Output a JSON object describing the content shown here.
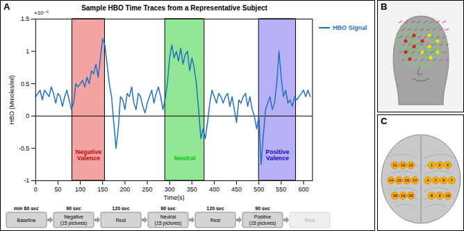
{
  "panel_labels": [
    "A",
    "B",
    "C"
  ],
  "chart_data": {
    "type": "line",
    "title": "Sample HBO Time Traces from a Representative Subject",
    "y_multiplier_label": "×10⁻⁶",
    "x_label": "Time(s)",
    "y_label": "HBO (Mmoles/ml)",
    "x": [
      0,
      5,
      10,
      15,
      20,
      25,
      30,
      35,
      40,
      45,
      50,
      55,
      60,
      65,
      70,
      75,
      80,
      85,
      90,
      95,
      100,
      105,
      110,
      115,
      120,
      125,
      130,
      135,
      140,
      145,
      150,
      155,
      160,
      165,
      170,
      175,
      180,
      185,
      190,
      195,
      200,
      205,
      210,
      215,
      220,
      225,
      230,
      235,
      240,
      245,
      250,
      255,
      260,
      265,
      270,
      275,
      280,
      285,
      290,
      295,
      300,
      305,
      310,
      315,
      320,
      325,
      330,
      335,
      340,
      345,
      350,
      355,
      360,
      365,
      370,
      375,
      380,
      385,
      390,
      395,
      400,
      405,
      410,
      415,
      420,
      425,
      430,
      435,
      440,
      445,
      450,
      455,
      460,
      465,
      470,
      475,
      480,
      485,
      490,
      495,
      500,
      505,
      510,
      515,
      520,
      525,
      530,
      535,
      540,
      545,
      550,
      555,
      560,
      565,
      570,
      575,
      580,
      585,
      590,
      595,
      600,
      605,
      610,
      615
    ],
    "series": [
      {
        "name": "HBO Signal",
        "color": "#1f6fc4",
        "values": [
          0.3,
          0.35,
          0.4,
          0.25,
          0.4,
          0.35,
          0.3,
          0.45,
          0.35,
          0.2,
          0.35,
          0.3,
          0.15,
          0.3,
          0.4,
          0.25,
          0.1,
          0.2,
          0.5,
          0.45,
          0.5,
          0.55,
          0.45,
          0.6,
          0.5,
          0.7,
          0.65,
          0.8,
          0.6,
          0.9,
          1.2,
          1.1,
          0.8,
          0.5,
          0.3,
          -0.1,
          -0.5,
          -0.2,
          0.3,
          0.25,
          0.1,
          0.35,
          0.3,
          0.45,
          0.2,
          0.1,
          0.35,
          0.3,
          0.15,
          0.05,
          0.2,
          0.3,
          0.4,
          0.2,
          0.35,
          0.45,
          0.3,
          0.1,
          0.25,
          0.5,
          0.9,
          1.1,
          0.9,
          1.0,
          0.85,
          1.05,
          0.8,
          0.95,
          1.0,
          0.7,
          0.9,
          0.75,
          0.5,
          0.1,
          -0.35,
          -0.2,
          -0.35,
          -0.1,
          0.2,
          0.4,
          0.3,
          0.2,
          0.35,
          0.3,
          0.2,
          0.3,
          0.35,
          0.15,
          0.3,
          0.1,
          -0.1,
          0.25,
          0.2,
          0.3,
          0.35,
          0.15,
          0.3,
          0.1,
          0,
          -0.2,
          0,
          -0.75,
          -0.3,
          0.1,
          0.2,
          0.3,
          0.1,
          0.2,
          0.5,
          1.0,
          0.6,
          0.3,
          0.4,
          0.2,
          0.25,
          0.15,
          0.3,
          0.25,
          0.3,
          0.35,
          0.4,
          0.3,
          0.4,
          0.3
        ]
      }
    ],
    "regions": [
      {
        "label": "Negative Valence",
        "start": 82,
        "end": 155,
        "color": "#f4a3a3"
      },
      {
        "label": "Neutral",
        "start": 290,
        "end": 378,
        "color": "#93e693"
      },
      {
        "label": "Positive Valence",
        "start": 500,
        "end": 583,
        "color": "#b8b0f5"
      }
    ],
    "reference_y": 0,
    "xlim": [
      0,
      620
    ],
    "xticks": [
      0,
      50,
      100,
      150,
      200,
      250,
      300,
      350,
      400,
      450,
      500,
      550,
      600
    ],
    "ylim": [
      -1,
      1.5
    ],
    "yticks": [
      -1,
      -0.5,
      0,
      0.5,
      1,
      1.5
    ],
    "grid": false,
    "legend": "right"
  },
  "timeline": [
    {
      "duration": "min 60 sec",
      "label": "Baseline"
    },
    {
      "duration": "90 sec",
      "label": "Negative",
      "detail": "(15 pictures)"
    },
    {
      "duration": "120 sec",
      "label": "Rest"
    },
    {
      "duration": "90 sec",
      "label": "Neutral",
      "detail": "(15 pictures)"
    },
    {
      "duration": "120 sec",
      "label": "Rest"
    },
    {
      "duration": "90 sec",
      "label": "Positive",
      "detail": "(15 pictures)"
    },
    {
      "label": "Rest"
    }
  ],
  "brain_channels": [
    1,
    2,
    3,
    4,
    5,
    6,
    7,
    8,
    9,
    10,
    11,
    12,
    13,
    14,
    15,
    16,
    17,
    18,
    19,
    20
  ]
}
